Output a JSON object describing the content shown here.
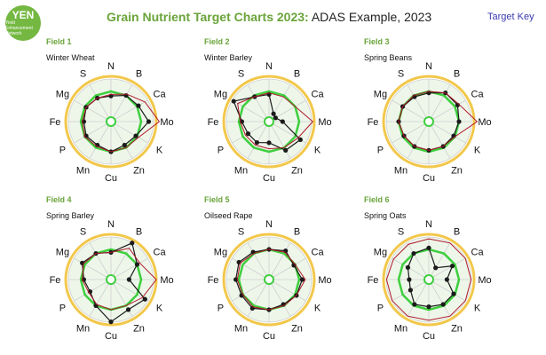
{
  "header": {
    "logo_text": "YEN",
    "logo_subtext": "Yield Enhancement Network",
    "title_main": "Grain Nutrient Target Charts 2023:",
    "title_suffix": "ADAS Example, 2023",
    "target_key_label": "Target Key"
  },
  "colors": {
    "brand_green": "#6aa43a",
    "target_ring": "#f2c84b",
    "target_zone": "#3ecf3e",
    "target_fill": "#eef6ea",
    "result_line": "#1a1a1a",
    "comparison_line": "#b0182a"
  },
  "chart_data": [
    {
      "type": "radar",
      "field": "Field 1",
      "crop": "Winter Wheat",
      "axes": [
        "N",
        "B",
        "Ca",
        "Mo",
        "K",
        "Zn",
        "Cu",
        "Mn",
        "P",
        "Fe",
        "Mg",
        "S"
      ],
      "rlim": [
        0,
        2
      ],
      "target": [
        1,
        1,
        1,
        1,
        1,
        1,
        1,
        1,
        1,
        1,
        1,
        1
      ],
      "series": [
        {
          "values": [
            0.85,
            1.0,
            1.05,
            1.25,
            0.95,
            0.9,
            1.0,
            0.9,
            0.95,
            0.9,
            0.95,
            0.9
          ]
        },
        {
          "values": [
            0.9,
            1.05,
            1.3,
            1.6,
            1.05,
            1.0,
            1.0,
            0.95,
            1.0,
            0.95,
            0.95,
            0.9
          ]
        }
      ]
    },
    {
      "type": "radar",
      "field": "Field 2",
      "crop": "Winter Barley",
      "axes": [
        "N",
        "B",
        "Ca",
        "Mo",
        "K",
        "Zn",
        "Cu",
        "Mn",
        "P",
        "Fe",
        "Mg",
        "S"
      ],
      "rlim": [
        0,
        2
      ],
      "target": [
        1,
        1,
        1,
        1,
        1,
        1,
        1,
        1,
        1,
        1,
        1,
        1
      ],
      "series": [
        {
          "values": [
            0.9,
            0.3,
            0.25,
            0.45,
            1.2,
            1.1,
            0.7,
            0.8,
            0.8,
            0.9,
            1.35,
            0.95
          ]
        },
        {
          "values": [
            0.95,
            0.95,
            1.0,
            1.45,
            1.1,
            1.0,
            0.9,
            0.9,
            0.9,
            0.95,
            1.2,
            0.95
          ]
        }
      ]
    },
    {
      "type": "radar",
      "field": "Field 3",
      "crop": "Spring Beans",
      "axes": [
        "N",
        "B",
        "Ca",
        "Mo",
        "K",
        "Zn",
        "Cu",
        "Mn",
        "P",
        "Fe",
        "Mg",
        "S"
      ],
      "rlim": [
        0,
        2
      ],
      "target": [
        1,
        1,
        1,
        1,
        1,
        1,
        1,
        1,
        1,
        1,
        1,
        1
      ],
      "series": [
        {
          "values": [
            0.95,
            1.1,
            1.1,
            1.0,
            0.95,
            0.95,
            0.95,
            0.95,
            0.95,
            1.0,
            1.0,
            0.95
          ]
        },
        {
          "values": [
            1.0,
            1.1,
            1.15,
            1.6,
            1.0,
            0.95,
            0.95,
            0.95,
            0.95,
            1.0,
            1.0,
            1.0
          ]
        }
      ]
    },
    {
      "type": "radar",
      "field": "Field 4",
      "crop": "Spring Barley",
      "axes": [
        "N",
        "B",
        "Ca",
        "Mo",
        "K",
        "Zn",
        "Cu",
        "Mn",
        "P",
        "Fe",
        "Mg",
        "S"
      ],
      "rlim": [
        0,
        2
      ],
      "target": [
        1,
        1,
        1,
        1,
        1,
        1,
        1,
        1,
        1,
        1,
        1,
        1
      ],
      "series": [
        {
          "values": [
            0.9,
            1.4,
            1.0,
            0.6,
            1.3,
            1.15,
            1.4,
            1.0,
            0.8,
            0.9,
            1.1,
            1.0
          ]
        },
        {
          "values": [
            0.9,
            1.2,
            1.1,
            1.5,
            1.2,
            1.0,
            1.0,
            0.95,
            0.85,
            0.95,
            1.05,
            1.0
          ]
        }
      ]
    },
    {
      "type": "radar",
      "field": "Field 5",
      "crop": "Oilseed Rape",
      "axes": [
        "N",
        "B",
        "Ca",
        "Mo",
        "K",
        "Zn",
        "Cu",
        "Mn",
        "P",
        "Fe",
        "Mg",
        "S"
      ],
      "rlim": [
        0,
        2
      ],
      "target": [
        1,
        1,
        1,
        1,
        1,
        1,
        1,
        1,
        1,
        1,
        1,
        1
      ],
      "series": [
        {
          "values": [
            1.0,
            1.1,
            0.95,
            1.1,
            1.05,
            0.95,
            1.0,
            1.1,
            1.05,
            1.1,
            1.15,
            1.05
          ]
        },
        {
          "values": [
            1.0,
            1.05,
            1.0,
            1.2,
            1.05,
            1.0,
            1.0,
            1.05,
            1.0,
            1.05,
            1.1,
            1.0
          ]
        }
      ]
    },
    {
      "type": "radar",
      "field": "Field 6",
      "crop": "Spring Oats",
      "axes": [
        "N",
        "B",
        "Ca",
        "Mo",
        "K",
        "Zn",
        "Cu",
        "Mn",
        "P",
        "Fe",
        "Mg",
        "S"
      ],
      "rlim": [
        0,
        2
      ],
      "target": [
        1,
        1,
        1,
        1,
        1,
        1,
        1,
        1,
        1,
        1,
        1,
        1
      ],
      "series": [
        {
          "values": [
            1.05,
            0.45,
            0.9,
            0.6,
            0.95,
            0.95,
            0.9,
            0.95,
            0.7,
            0.65,
            0.8,
            1.0
          ]
        },
        {
          "values": [
            1.35,
            1.4,
            1.4,
            1.4,
            1.4,
            1.4,
            1.35,
            1.4,
            1.4,
            1.4,
            1.35,
            1.35
          ]
        }
      ]
    }
  ]
}
